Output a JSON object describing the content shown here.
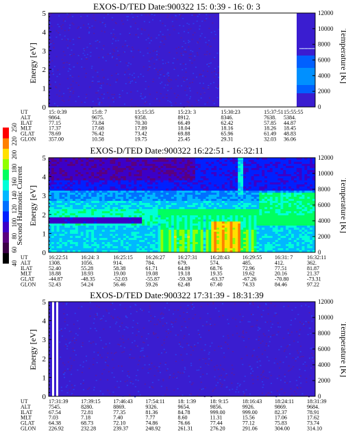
{
  "chart_data": [
    {
      "type": "heatmap",
      "title": "EXOS-D/TED   Date:900322  15: 0:39 - 16: 0: 3",
      "ylabel": "Energy [eV]",
      "y2label": "Temperature [K]",
      "ylim": [
        0,
        5
      ],
      "y2lim": [
        0,
        12000
      ],
      "yticks": [
        "0",
        "1",
        "2",
        "3",
        "4",
        "5"
      ],
      "y2ticks": [
        "0",
        "2000",
        "4000",
        "6000",
        "8000",
        "10000",
        "12000"
      ],
      "data_gaps_fraction": [
        [
          0.615,
          0.91
        ]
      ],
      "temperature_trace_K": [
        0,
        0,
        0,
        0,
        0,
        0,
        7700
      ],
      "ephemeris": {
        "row_labels": [
          "UT",
          "ALT",
          "ILAT",
          "MLT",
          "GLAT",
          "GLON"
        ],
        "columns": [
          [
            "15: 0:39",
            "9864.",
            "77.15",
            "17.37",
            "78.69",
            "357.00"
          ],
          [
            "15:8: 7",
            "9675.",
            "73.84",
            "17.68",
            "76.42",
            "10.58"
          ],
          [
            "15:15:35",
            "9358.",
            "70.30",
            "17.89",
            "73.42",
            "19.75"
          ],
          [
            "15:23: 3",
            "8912.",
            "66.49",
            "18.04",
            "69.88",
            "25.45"
          ],
          [
            "15:30:23",
            "8346.",
            "62.42",
            "18.16",
            "65.96",
            "29.31"
          ],
          [
            "15:37:51",
            "7638.",
            "57.85",
            "18.26",
            "61.49",
            "32.03"
          ],
          [
            "15:55:55",
            "5384.",
            "44.87",
            "18.45",
            "48.83",
            "36.06"
          ]
        ]
      }
    },
    {
      "type": "heatmap",
      "title": "EXOS-D/TED   Date:900322  16:22:51 - 16:32:11",
      "ylabel": "Energy [eV]",
      "y2label": "Temperature [K]",
      "ylim": [
        0,
        5
      ],
      "y2lim": [
        0,
        12000
      ],
      "yticks": [
        "0",
        "1",
        "2",
        "3",
        "4",
        "5"
      ],
      "y2ticks": [
        "0",
        "2000",
        "4000",
        "6000",
        "8000",
        "10000",
        "12000"
      ],
      "ephemeris": {
        "row_labels": [
          "UT",
          "ALT",
          "ILAT",
          "MLT",
          "GLAT",
          "GLON"
        ],
        "columns": [
          [
            "16:22:51",
            "1308.",
            "52.40",
            "18.88",
            "-44.87",
            "52.43"
          ],
          [
            "16:24: 3",
            "1056.",
            "55.28",
            "18.93",
            "-48.35",
            "54.24"
          ],
          [
            "16:25:15",
            "914.",
            "58.38",
            "19.00",
            "-52.03",
            "56.46"
          ],
          [
            "16:26:27",
            "784.",
            "61.71",
            "19.08",
            "-55.87",
            "59.26"
          ],
          [
            "16:27:31",
            "679.",
            "64.89",
            "19.18",
            "-59.38",
            "62.48"
          ],
          [
            "16:28:43",
            "574.",
            "68.76",
            "19.35",
            "-63.37",
            "67.40"
          ],
          [
            "16:29:55",
            "485.",
            "72.96",
            "19.62",
            "-67.26",
            "74.33"
          ],
          [
            "16:31: 7",
            "412.",
            "77.51",
            "20.16",
            "-70.80",
            "84.46"
          ],
          [
            "16:32:11",
            "362.",
            "81.87",
            "21.37",
            "-73.31",
            "97.22"
          ]
        ]
      }
    },
    {
      "type": "heatmap",
      "title": "EXOS-D/TED   Date:900322  17:31:39 - 18:31:39",
      "ylabel": "Energy [eV]",
      "y2label": "Temperature [K]",
      "ylim": [
        0,
        5
      ],
      "y2lim": [
        0,
        12000
      ],
      "yticks": [
        "0",
        "1",
        "2",
        "3",
        "4",
        "5"
      ],
      "y2ticks": [
        "0",
        "2000",
        "4000",
        "6000",
        "8000",
        "10000",
        "12000"
      ],
      "ephemeris": {
        "row_labels": [
          "UT",
          "ALT",
          "ILAT",
          "MLT",
          "GLAT",
          "GLON"
        ],
        "columns": [
          [
            "17:31:39",
            "7545.",
            "67.54",
            "7.03",
            "64.38",
            "226.92"
          ],
          [
            "17:39:15",
            "8280.",
            "72.81",
            "7.18",
            "68.73",
            "232.28"
          ],
          [
            "17:46:43",
            "8869.",
            "77.35",
            "7.40",
            "72.10",
            "239.37"
          ],
          [
            "17:54:11",
            "9326.",
            "81.36",
            "7.77",
            "74.86",
            "248.92"
          ],
          [
            "18: 1:39",
            "9654.",
            "84.78",
            "8.60",
            "76.66",
            "261.31"
          ],
          [
            "18: 9:15",
            "9856.",
            "999.00",
            "11.31",
            "77.44",
            "276.20"
          ],
          [
            "18:16:43",
            "9926.",
            "999.00",
            "15.56",
            "77.12",
            "291.06"
          ],
          [
            "18:24:11",
            "9869.",
            "82.37",
            "17.06",
            "75.83",
            "304.00"
          ],
          [
            "18:31:39",
            "9684.",
            "78.91",
            "17.62",
            "73.74",
            "314.10"
          ]
        ]
      }
    }
  ],
  "colorbar": {
    "label": "Second Harmonic Current",
    "ticks": [
      "40",
      "60",
      "80",
      "100",
      "120",
      "140",
      "160",
      "180",
      "200",
      "220",
      "250"
    ],
    "colors": [
      "#000000",
      "#3c0046",
      "#5a007f",
      "#3c00c8",
      "#0020ff",
      "#0070ff",
      "#00b8ff",
      "#00ffd8",
      "#00ff60",
      "#90ff00",
      "#ffe000",
      "#ff8000",
      "#ff0000"
    ]
  }
}
